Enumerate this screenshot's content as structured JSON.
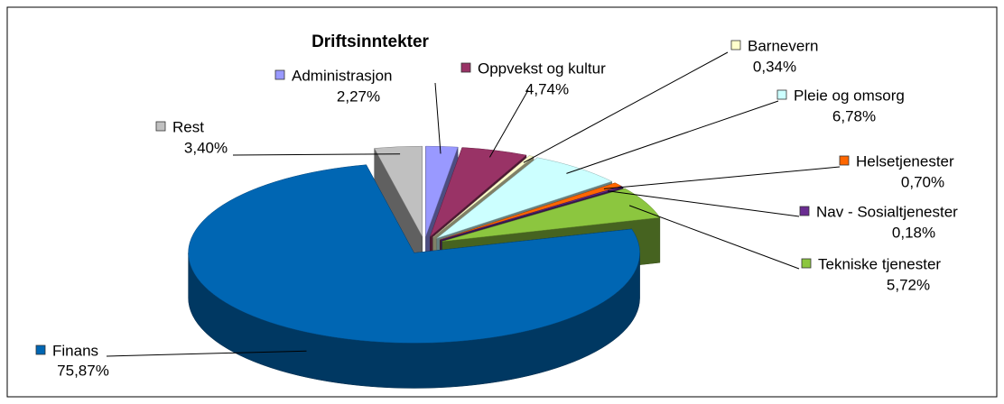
{
  "chart_data": {
    "type": "pie",
    "title": "Driftsinntekter",
    "categories": [
      "Administrasjon",
      "Oppvekst og kultur",
      "Barnevern",
      "Pleie og omsorg",
      "Helsetjenester",
      "Nav - Sosialtjenester",
      "Tekniske tjenester",
      "Finans",
      "Rest"
    ],
    "values": [
      2.27,
      4.74,
      0.34,
      6.78,
      0.7,
      0.18,
      5.72,
      75.87,
      3.4
    ],
    "value_labels": [
      "2,27%",
      "4,74%",
      "0,34%",
      "6,78%",
      "0,70%",
      "0,18%",
      "5,72%",
      "75,87%",
      "3,40%"
    ],
    "colors": [
      "#9999ff",
      "#993366",
      "#ffffcc",
      "#ccffff",
      "#ff6600",
      "#6a2c91",
      "#8cc63f",
      "#0066b3",
      "#c0c0c0"
    ]
  }
}
